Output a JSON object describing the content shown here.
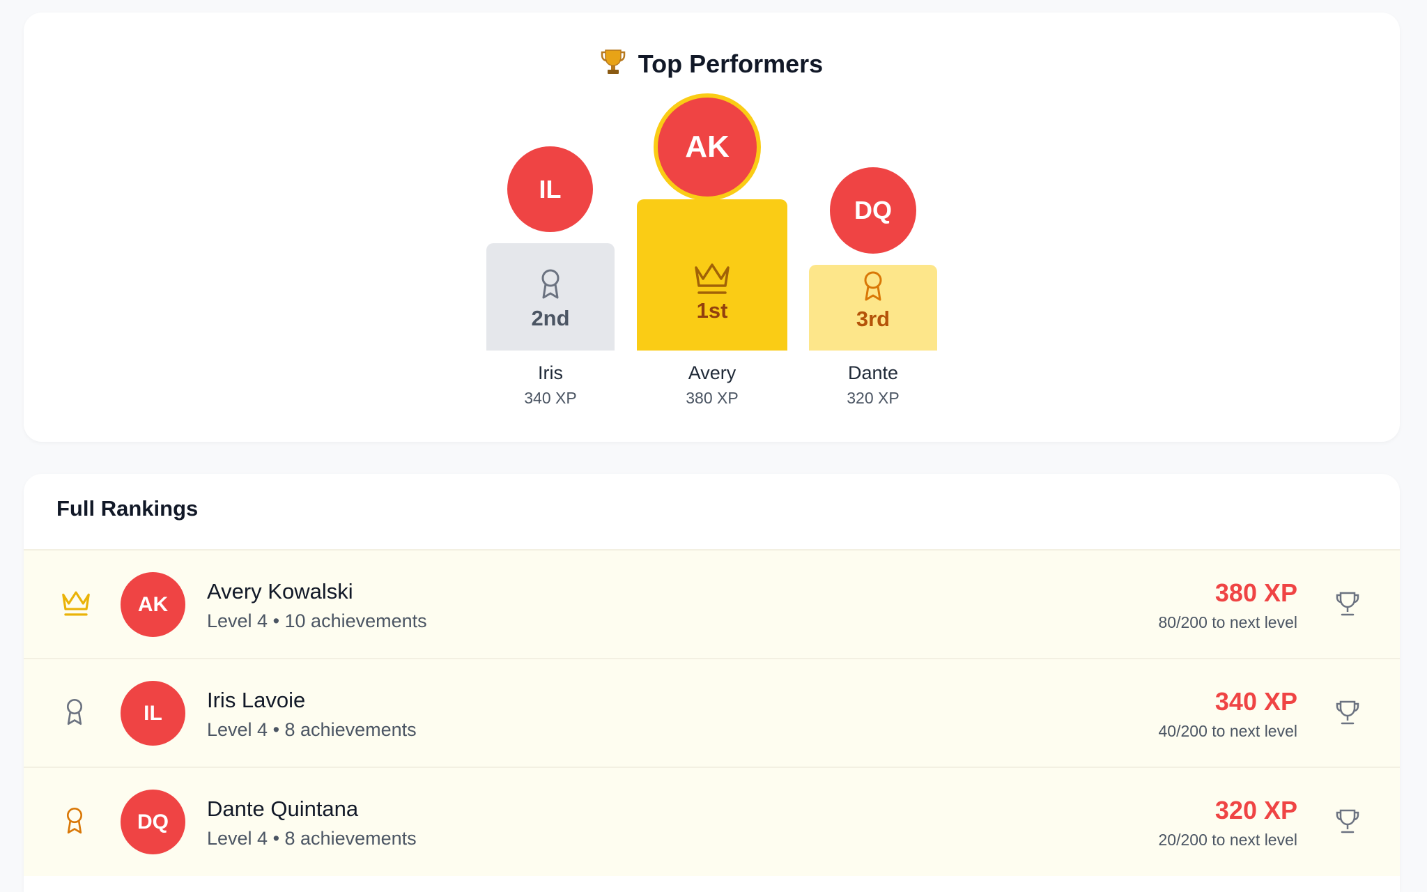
{
  "podium": {
    "title": "Top Performers",
    "first": {
      "initials": "AK",
      "place": "1st",
      "name": "Avery",
      "xp": "380 XP"
    },
    "second": {
      "initials": "IL",
      "place": "2nd",
      "name": "Iris",
      "xp": "340 XP"
    },
    "third": {
      "initials": "DQ",
      "place": "3rd",
      "name": "Dante",
      "xp": "320 XP"
    }
  },
  "rankings": {
    "heading": "Full Rankings",
    "rows": [
      {
        "initials": "AK",
        "name": "Avery Kowalski",
        "meta": "Level 4 • 10 achievements",
        "xp": "380 XP",
        "progress": "80/200 to next level",
        "icon": "crown-icon"
      },
      {
        "initials": "IL",
        "name": "Iris Lavoie",
        "meta": "Level 4 • 8 achievements",
        "xp": "340 XP",
        "progress": "40/200 to next level",
        "icon": "medal-icon"
      },
      {
        "initials": "DQ",
        "name": "Dante Quintana",
        "meta": "Level 4 • 8 achievements",
        "xp": "320 XP",
        "progress": "20/200 to next level",
        "icon": "medal-icon"
      }
    ]
  },
  "colors": {
    "accent_red": "#ef4444",
    "gold": "#facc15",
    "silver": "#e5e7eb",
    "bronze": "#fde68a",
    "row_bg": "#fefdf0"
  }
}
